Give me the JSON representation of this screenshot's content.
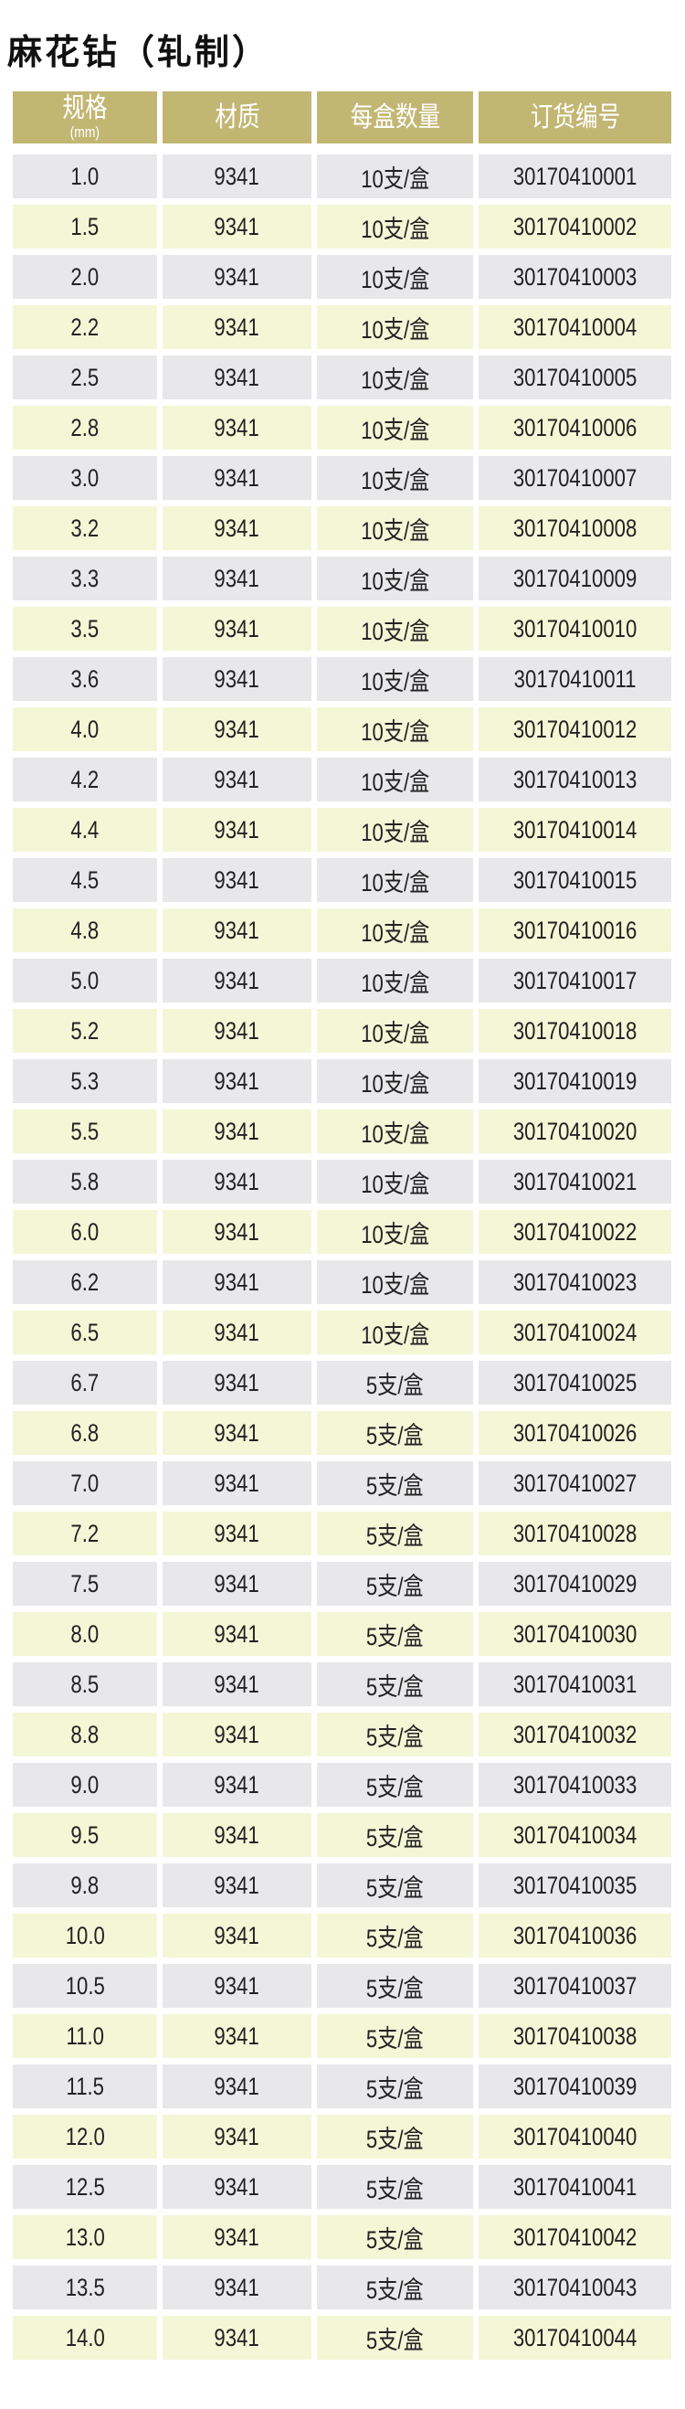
{
  "title": "麻花钻（轧制）",
  "colors": {
    "header_bg": "#c2b673",
    "row_grey": "#e8e8ea",
    "row_yellow": "#f3f7d6"
  },
  "table": {
    "headers": [
      {
        "label": "规格",
        "sub": "(mm)"
      },
      {
        "label": "材质"
      },
      {
        "label": "每盒数量"
      },
      {
        "label": "订货编号"
      }
    ],
    "rows": [
      [
        "1.0",
        "9341",
        "10支/盒",
        "30170410001"
      ],
      [
        "1.5",
        "9341",
        "10支/盒",
        "30170410002"
      ],
      [
        "2.0",
        "9341",
        "10支/盒",
        "30170410003"
      ],
      [
        "2.2",
        "9341",
        "10支/盒",
        "30170410004"
      ],
      [
        "2.5",
        "9341",
        "10支/盒",
        "30170410005"
      ],
      [
        "2.8",
        "9341",
        "10支/盒",
        "30170410006"
      ],
      [
        "3.0",
        "9341",
        "10支/盒",
        "30170410007"
      ],
      [
        "3.2",
        "9341",
        "10支/盒",
        "30170410008"
      ],
      [
        "3.3",
        "9341",
        "10支/盒",
        "30170410009"
      ],
      [
        "3.5",
        "9341",
        "10支/盒",
        "30170410010"
      ],
      [
        "3.6",
        "9341",
        "10支/盒",
        "30170410011"
      ],
      [
        "4.0",
        "9341",
        "10支/盒",
        "30170410012"
      ],
      [
        "4.2",
        "9341",
        "10支/盒",
        "30170410013"
      ],
      [
        "4.4",
        "9341",
        "10支/盒",
        "30170410014"
      ],
      [
        "4.5",
        "9341",
        "10支/盒",
        "30170410015"
      ],
      [
        "4.8",
        "9341",
        "10支/盒",
        "30170410016"
      ],
      [
        "5.0",
        "9341",
        "10支/盒",
        "30170410017"
      ],
      [
        "5.2",
        "9341",
        "10支/盒",
        "30170410018"
      ],
      [
        "5.3",
        "9341",
        "10支/盒",
        "30170410019"
      ],
      [
        "5.5",
        "9341",
        "10支/盒",
        "30170410020"
      ],
      [
        "5.8",
        "9341",
        "10支/盒",
        "30170410021"
      ],
      [
        "6.0",
        "9341",
        "10支/盒",
        "30170410022"
      ],
      [
        "6.2",
        "9341",
        "10支/盒",
        "30170410023"
      ],
      [
        "6.5",
        "9341",
        "10支/盒",
        "30170410024"
      ],
      [
        "6.7",
        "9341",
        "5支/盒",
        "30170410025"
      ],
      [
        "6.8",
        "9341",
        "5支/盒",
        "30170410026"
      ],
      [
        "7.0",
        "9341",
        "5支/盒",
        "30170410027"
      ],
      [
        "7.2",
        "9341",
        "5支/盒",
        "30170410028"
      ],
      [
        "7.5",
        "9341",
        "5支/盒",
        "30170410029"
      ],
      [
        "8.0",
        "9341",
        "5支/盒",
        "30170410030"
      ],
      [
        "8.5",
        "9341",
        "5支/盒",
        "30170410031"
      ],
      [
        "8.8",
        "9341",
        "5支/盒",
        "30170410032"
      ],
      [
        "9.0",
        "9341",
        "5支/盒",
        "30170410033"
      ],
      [
        "9.5",
        "9341",
        "5支/盒",
        "30170410034"
      ],
      [
        "9.8",
        "9341",
        "5支/盒",
        "30170410035"
      ],
      [
        "10.0",
        "9341",
        "5支/盒",
        "30170410036"
      ],
      [
        "10.5",
        "9341",
        "5支/盒",
        "30170410037"
      ],
      [
        "11.0",
        "9341",
        "5支/盒",
        "30170410038"
      ],
      [
        "11.5",
        "9341",
        "5支/盒",
        "30170410039"
      ],
      [
        "12.0",
        "9341",
        "5支/盒",
        "30170410040"
      ],
      [
        "12.5",
        "9341",
        "5支/盒",
        "30170410041"
      ],
      [
        "13.0",
        "9341",
        "5支/盒",
        "30170410042"
      ],
      [
        "13.5",
        "9341",
        "5支/盒",
        "30170410043"
      ],
      [
        "14.0",
        "9341",
        "5支/盒",
        "30170410044"
      ]
    ]
  }
}
